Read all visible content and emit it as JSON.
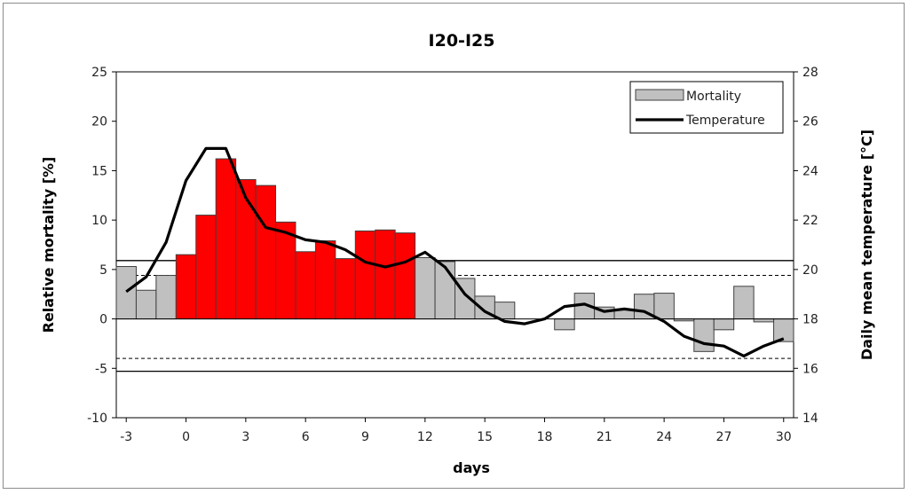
{
  "chart_data": {
    "type": "bar+line",
    "title": "I20-I25",
    "xlabel": "days",
    "ylabel_left": "Relative mortality [%]",
    "ylabel_right": "Daily mean temperature [°C]",
    "xlim": [
      -3,
      30
    ],
    "ylim_left": [
      -10,
      25
    ],
    "ylim_right": [
      14,
      28
    ],
    "x_ticks": [
      "-3",
      "0",
      "3",
      "6",
      "9",
      "12",
      "15",
      "18",
      "21",
      "24",
      "27",
      "30"
    ],
    "y_ticks_left": [
      "-10",
      "-5",
      "0",
      "5",
      "10",
      "15",
      "20",
      "25"
    ],
    "y_ticks_right": [
      "14",
      "16",
      "18",
      "20",
      "22",
      "24",
      "26",
      "28"
    ],
    "legend": {
      "position": "top-right",
      "entries": [
        "Mortality",
        "Temperature"
      ]
    },
    "colors": {
      "heatwave_bar": "#ff0000",
      "normal_bar": "#c0c0c0",
      "temperature_line": "#000000",
      "bar_edge": "#404040"
    },
    "reference_lines": {
      "solid": [
        5.9,
        -5.3
      ],
      "dashed": [
        4.4,
        -4.0
      ]
    },
    "series": [
      {
        "name": "Mortality",
        "x": [
          -3,
          -2,
          -1,
          0,
          1,
          2,
          3,
          4,
          5,
          6,
          7,
          8,
          9,
          10,
          11,
          12,
          13,
          14,
          15,
          16,
          17,
          18,
          19,
          20,
          21,
          22,
          23,
          24,
          25,
          26,
          27,
          28,
          29,
          30
        ],
        "values": [
          5.3,
          2.9,
          4.4,
          6.5,
          10.5,
          16.2,
          14.1,
          13.5,
          9.8,
          6.8,
          7.9,
          6.1,
          8.9,
          9.0,
          8.7,
          6.2,
          5.8,
          4.1,
          2.3,
          1.7,
          0.0,
          0.0,
          -1.1,
          2.6,
          1.2,
          1.0,
          2.5,
          2.6,
          -0.2,
          -3.3,
          -1.1,
          3.3,
          -0.3,
          -2.3
        ],
        "highlight": [
          false,
          false,
          false,
          true,
          true,
          true,
          true,
          true,
          true,
          true,
          true,
          true,
          true,
          true,
          true,
          false,
          false,
          false,
          false,
          false,
          false,
          false,
          false,
          false,
          false,
          false,
          false,
          false,
          false,
          false,
          false,
          false,
          false,
          false
        ]
      },
      {
        "name": "Temperature",
        "x": [
          -3,
          -2,
          -1,
          0,
          1,
          2,
          3,
          4,
          5,
          6,
          7,
          8,
          9,
          10,
          11,
          12,
          13,
          14,
          15,
          16,
          17,
          18,
          19,
          20,
          21,
          22,
          23,
          24,
          25,
          26,
          27,
          28,
          29,
          30
        ],
        "values": [
          19.1,
          19.7,
          21.1,
          23.6,
          24.9,
          24.9,
          22.9,
          21.7,
          21.5,
          21.2,
          21.1,
          20.8,
          20.3,
          20.1,
          20.3,
          20.7,
          20.1,
          19.0,
          18.3,
          17.9,
          17.8,
          18.0,
          18.5,
          18.6,
          18.3,
          18.4,
          18.3,
          17.9,
          17.3,
          17.0,
          16.9,
          16.5,
          16.9,
          17.2
        ]
      }
    ]
  }
}
